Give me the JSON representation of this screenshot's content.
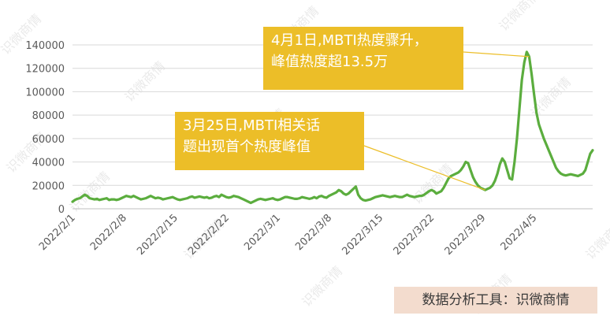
{
  "chart_data": {
    "type": "line",
    "title": "",
    "xlabel": "",
    "ylabel": "",
    "ylim": [
      0,
      140000
    ],
    "y_ticks": [
      0,
      20000,
      40000,
      60000,
      80000,
      100000,
      120000,
      140000
    ],
    "x_tick_labels": [
      "2022/2/1",
      "2022/2/8",
      "2022/2/15",
      "2022/2/22",
      "2022/3/1",
      "2022/3/8",
      "2022/3/15",
      "2022/3/22",
      "2022/3/29",
      "2022/4/5"
    ],
    "x_tick_indices": [
      0,
      7,
      14,
      21,
      28,
      35,
      42,
      49,
      56,
      63
    ],
    "grid": "horizontal",
    "series": [
      {
        "color": "#5BAD3E",
        "values": [
          6000,
          7500,
          8500,
          9000,
          10500,
          12000,
          11000,
          9000,
          8500,
          8000,
          8500,
          7500,
          8000,
          8500,
          9000,
          7500,
          8000,
          8000,
          7500,
          8000,
          9000,
          10000,
          11000,
          10500,
          10000,
          11000,
          10000,
          9000,
          8000,
          8500,
          9000,
          10000,
          11000,
          10000,
          9000,
          9500,
          9000,
          8000,
          8500,
          9000,
          9500,
          10000,
          9000,
          8000,
          7500,
          8000,
          8500,
          9000,
          10000,
          10500,
          9500,
          10000,
          10500,
          10000,
          9500,
          10000,
          9000,
          9500,
          10500,
          11000,
          10000,
          12000,
          11000,
          10000,
          9500,
          10000,
          11000,
          10500,
          10000,
          9000,
          8000,
          7000,
          6000,
          5000,
          6000,
          7000,
          8000,
          8500,
          8000,
          7500,
          8000,
          8500,
          9000,
          8000,
          7500,
          8000,
          9000,
          10000,
          10000,
          9500,
          9000,
          8500,
          8500,
          9000,
          10000,
          9500,
          9000,
          8500,
          9000,
          10000,
          9000,
          10500,
          11000,
          10000,
          9500,
          11000,
          12000,
          13000,
          14000,
          16000,
          15000,
          13000,
          12000,
          13000,
          15000,
          17000,
          19000,
          12000,
          9000,
          7500,
          7000,
          7500,
          8000,
          9000,
          10000,
          10500,
          11000,
          11500,
          11000,
          10500,
          10000,
          10500,
          11000,
          10500,
          10000,
          10000,
          11000,
          12000,
          11000,
          10500,
          10000,
          10500,
          11000,
          11000,
          12000,
          13500,
          15000,
          16000,
          15000,
          13000,
          14000,
          15000,
          18000,
          22000,
          26000,
          28000,
          29000,
          30000,
          31000,
          33000,
          36000,
          40000,
          39000,
          33000,
          27000,
          23000,
          20000,
          18000,
          17000,
          16000,
          17000,
          18000,
          20000,
          24000,
          30000,
          38000,
          43000,
          40000,
          33000,
          26000,
          25000,
          40000,
          60000,
          85000,
          110000,
          125000,
          134000,
          130000,
          115000,
          98000,
          82000,
          72000,
          66000,
          60000,
          55000,
          50000,
          45000,
          40000,
          35000,
          32000,
          30000,
          29000,
          28500,
          29000,
          29500,
          29000,
          28500,
          28000,
          29000,
          30000,
          33000,
          40000,
          47000,
          50000
        ]
      }
    ],
    "annotations": [
      {
        "target_index": 169,
        "lines": [
          "3月25日,MBTI相关话",
          "题出现首个热度峰值"
        ]
      },
      {
        "target_index": 187,
        "lines": [
          "4月1日,MBTI热度骤升，",
          "峰值热度超13.5万"
        ]
      }
    ]
  },
  "annotations": {
    "topic_peak": {
      "line1": "3月25日,MBTI相关话",
      "line2": "题出现首个热度峰值"
    },
    "big_peak": {
      "line1": "4月1日,MBTI热度骤升，",
      "line2": "峰值热度超13.5万"
    }
  },
  "source_label": "数据分析工具：识微商情",
  "watermark_text": "识微商情",
  "colors": {
    "line": "#5BAD3E",
    "annotation_bg": "#ECBE28",
    "source_bg": "#F3DCCE",
    "grid": "#d9d9d9",
    "axis": "#bfbfbf"
  }
}
